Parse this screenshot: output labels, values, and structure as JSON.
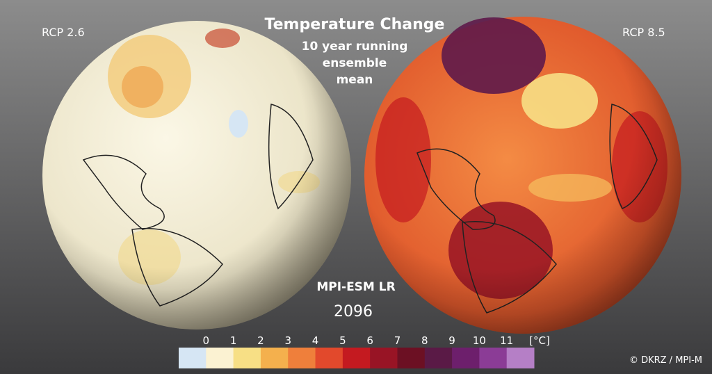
{
  "title": "Temperature Change",
  "subtitle": [
    "10 year running",
    "ensemble",
    "mean"
  ],
  "left_label": "RCP 2.6",
  "right_label": "RCP 8.5",
  "model": "MPI-ESM LR",
  "year": "2096",
  "credit": "© DKRZ / MPI-M",
  "colorbar": {
    "ticks": [
      0,
      1,
      2,
      3,
      4,
      5,
      6,
      7,
      8,
      9,
      10,
      11
    ],
    "unit": "[°C]",
    "colors": [
      "#d6e6f4",
      "#fbf2d2",
      "#f7df85",
      "#f4b04d",
      "#ef7f3b",
      "#e2492c",
      "#c41a20",
      "#981425",
      "#6c1023",
      "#5a1a46",
      "#6d1f6c",
      "#8b3c96",
      "#b57fc6"
    ]
  }
}
